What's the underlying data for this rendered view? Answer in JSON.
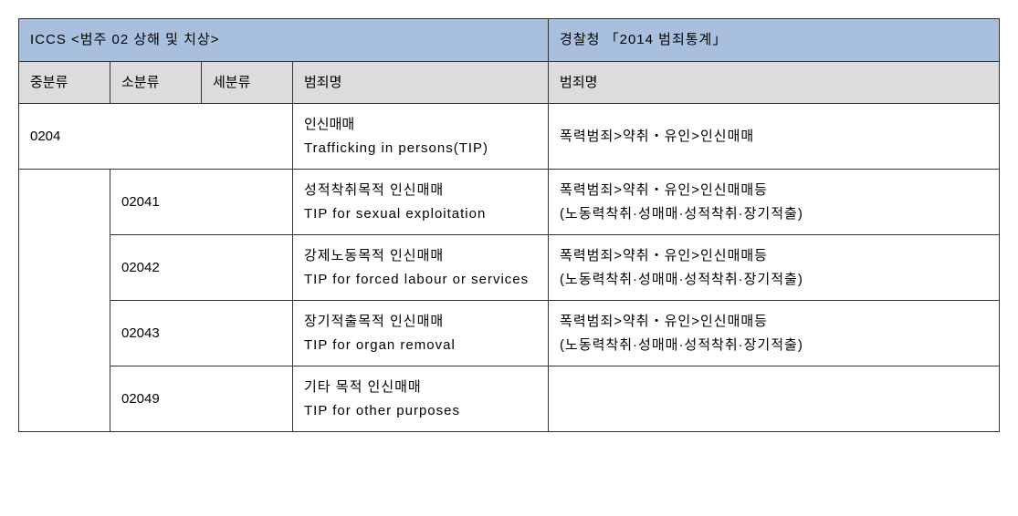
{
  "headers": {
    "top_left": "ICCS <범주 02 상해 및 치상>",
    "top_right": "경찰청 「2014 범죄통계」",
    "col1": "중분류",
    "col2": "소분류",
    "col3": "세분류",
    "col4": "범죄명",
    "col5": "범죄명"
  },
  "rows": {
    "r0": {
      "code": "0204",
      "crime_ko": "인신매매",
      "crime_en": "Trafficking in persons(TIP)",
      "police": "폭력범죄>약취・유인>인신매매"
    },
    "r1": {
      "code": "02041",
      "crime_ko": "성적착취목적 인신매매",
      "crime_en": "TIP for sexual exploitation",
      "police_l1": "폭력범죄>약취・유인>인신매매등",
      "police_l2": "(노동력착취·성매매·성적착취·장기적출)"
    },
    "r2": {
      "code": "02042",
      "crime_ko": "강제노동목적 인신매매",
      "crime_en": "TIP for forced labour or services",
      "police_l1": "폭력범죄>약취・유인>인신매매등",
      "police_l2": "(노동력착취·성매매·성적착취·장기적출)"
    },
    "r3": {
      "code": "02043",
      "crime_ko": "장기적출목적 인신매매",
      "crime_en": "TIP for organ removal",
      "police_l1": "폭력범죄>약취・유인>인신매매등",
      "police_l2": "(노동력착취·성매매·성적착취·장기적출)"
    },
    "r4": {
      "code": "02049",
      "crime_ko": "기타 목적 인신매매",
      "crime_en": "TIP for other purposes",
      "police": ""
    }
  },
  "style": {
    "header_blue_bg": "#a8c0de",
    "header_gray_bg": "#dcdcdc",
    "border_color": "#333333",
    "font_size_pt": 15,
    "line_height": 1.7
  }
}
